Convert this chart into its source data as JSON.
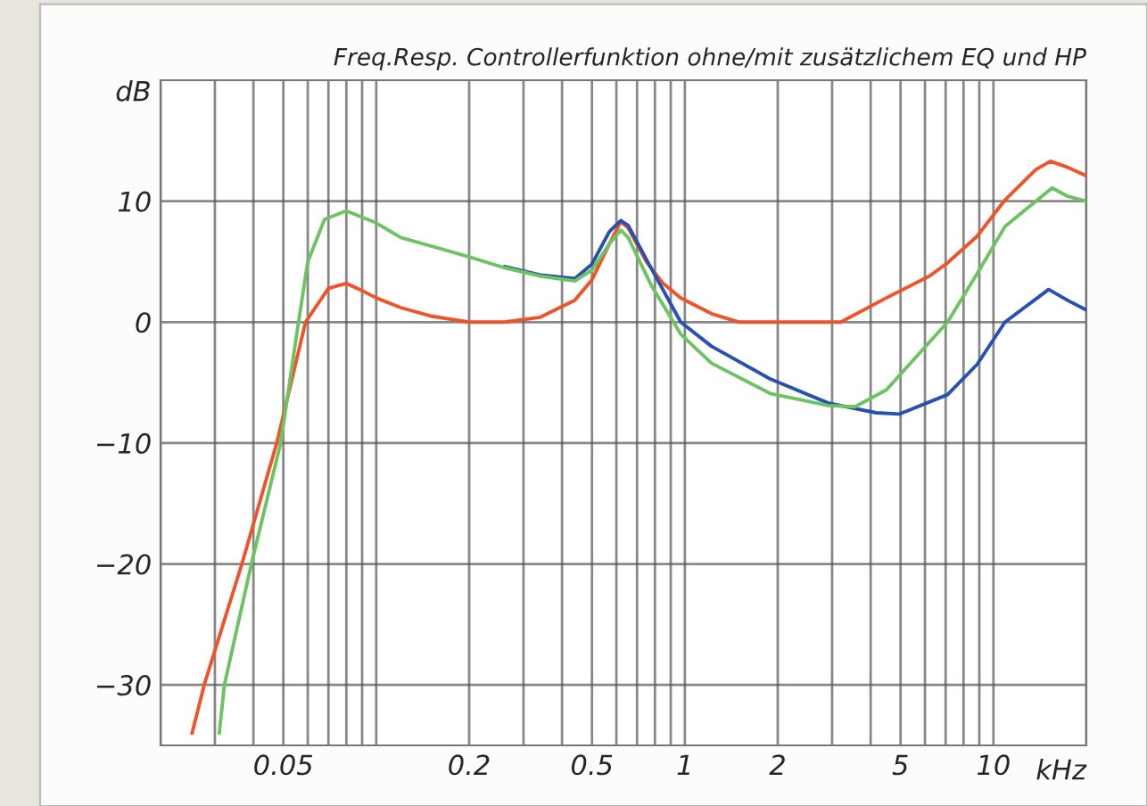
{
  "chart_data": {
    "type": "line",
    "title": "Freq.Resp. Controllerfunktion ohne/mit zusätzlichem EQ und HP",
    "xlabel": "kHz",
    "ylabel": "dB",
    "log": "x",
    "grid": true,
    "legend": false,
    "marker": "none",
    "line_style": "solid",
    "xlim": [
      0.02,
      20
    ],
    "ylim": [
      -35,
      20
    ],
    "xticks": [
      {
        "value": 0.02,
        "label": null
      },
      {
        "value": 0.03,
        "label": null
      },
      {
        "value": 0.04,
        "label": null
      },
      0.05,
      {
        "value": 0.06,
        "label": null
      },
      {
        "value": 0.07,
        "label": null
      },
      {
        "value": 0.08,
        "label": null
      },
      {
        "value": 0.09,
        "label": null
      },
      {
        "value": 0.1,
        "label": null
      },
      0.2,
      {
        "value": 0.3,
        "label": null
      },
      {
        "value": 0.4,
        "label": null
      },
      0.5,
      {
        "value": 0.6,
        "label": null
      },
      {
        "value": 0.7,
        "label": null
      },
      {
        "value": 0.8,
        "label": null
      },
      {
        "value": 0.9,
        "label": null
      },
      1,
      2,
      {
        "value": 3,
        "label": null
      },
      {
        "value": 4,
        "label": null
      },
      5,
      {
        "value": 6,
        "label": null
      },
      {
        "value": 7,
        "label": null
      },
      {
        "value": 8,
        "label": null
      },
      {
        "value": 9,
        "label": null
      },
      10,
      {
        "value": 20,
        "label": null
      }
    ],
    "yticks": [
      {
        "value": -30,
        "label": "−30"
      },
      {
        "value": -20,
        "label": "−20"
      },
      {
        "value": -10,
        "label": "−10"
      },
      0,
      10
    ],
    "series": [
      {
        "color": "#f0522a",
        "x": [
          0.0253,
          0.0277,
          0.0367,
          0.0476,
          0.059,
          0.07,
          0.08,
          0.09,
          0.1,
          0.12,
          0.15,
          0.2,
          0.26,
          0.34,
          0.44,
          0.5,
          0.57,
          0.62,
          0.655,
          0.75,
          0.85,
          0.97,
          1.22,
          1.5,
          2.15,
          3.2,
          4.5,
          6.2,
          7.1,
          8.85,
          10.9,
          13.7,
          15.3,
          17.4,
          20
        ],
        "values": [
          -34,
          -30,
          -20,
          -10,
          0,
          2.8,
          3.2,
          2.6,
          2.0,
          1.2,
          0.5,
          0.0,
          0,
          0.4,
          1.8,
          3.5,
          6.5,
          8.3,
          7.8,
          5.0,
          3.2,
          2.0,
          0.7,
          0,
          0,
          0,
          2.0,
          3.8,
          4.9,
          7.1,
          10.1,
          12.6,
          13.3,
          12.8,
          12.1
        ]
      },
      {
        "color": "#2850b4",
        "x": [
          0.26,
          0.34,
          0.44,
          0.5,
          0.57,
          0.62,
          0.655,
          0.78,
          0.97,
          1.22,
          1.89,
          2.92,
          4.17,
          4.96,
          7.1,
          8.85,
          10.9,
          15.1,
          17.4,
          20
        ],
        "values": [
          4.6,
          3.9,
          3.6,
          4.8,
          7.5,
          8.4,
          8.0,
          4.4,
          0,
          -2.0,
          -4.7,
          -6.7,
          -7.5,
          -7.6,
          -6.0,
          -3.5,
          0,
          2.7,
          1.8,
          1.0
        ]
      },
      {
        "color": "#6cc460",
        "x": [
          0.031,
          0.0322,
          0.0394,
          0.049,
          0.056,
          0.06,
          0.068,
          0.08,
          0.1,
          0.12,
          0.2,
          0.26,
          0.34,
          0.44,
          0.5,
          0.57,
          0.62,
          0.655,
          0.78,
          0.97,
          1.22,
          1.89,
          2.92,
          3.56,
          4.5,
          7.1,
          8.85,
          10.9,
          15.5,
          17.4,
          20
        ],
        "values": [
          -34,
          -30,
          -20,
          -10,
          0,
          5,
          8.5,
          9.2,
          8.2,
          7.0,
          5.4,
          4.5,
          3.8,
          3.4,
          4.3,
          6.5,
          7.6,
          7.0,
          3.0,
          -1.0,
          -3.4,
          -5.9,
          -6.9,
          -7.0,
          -5.6,
          0,
          4.0,
          7.9,
          11.1,
          10.4,
          10.0
        ]
      }
    ]
  }
}
